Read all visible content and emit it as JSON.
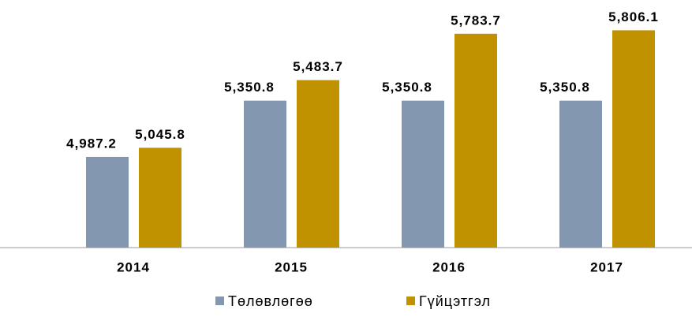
{
  "chart_data": {
    "type": "bar",
    "categories": [
      "2014",
      "2015",
      "2016",
      "2017"
    ],
    "series": [
      {
        "name": "Төлөвлөгөө",
        "color": "#8397b1",
        "values": [
          4987.2,
          5350.8,
          5350.8,
          5350.8
        ],
        "value_labels": [
          "4,987.2",
          "5,350.8",
          "5,350.8",
          "5,350.8"
        ]
      },
      {
        "name": "Гүйцэтгэл",
        "color": "#c09200",
        "values": [
          5045.8,
          5483.7,
          5783.7,
          5806.1
        ],
        "value_labels": [
          "5,045.8",
          "5,483.7",
          "5,783.7",
          "5,806.1"
        ]
      }
    ],
    "ylim": [
      4400,
      5900
    ],
    "legend": "bottom"
  }
}
